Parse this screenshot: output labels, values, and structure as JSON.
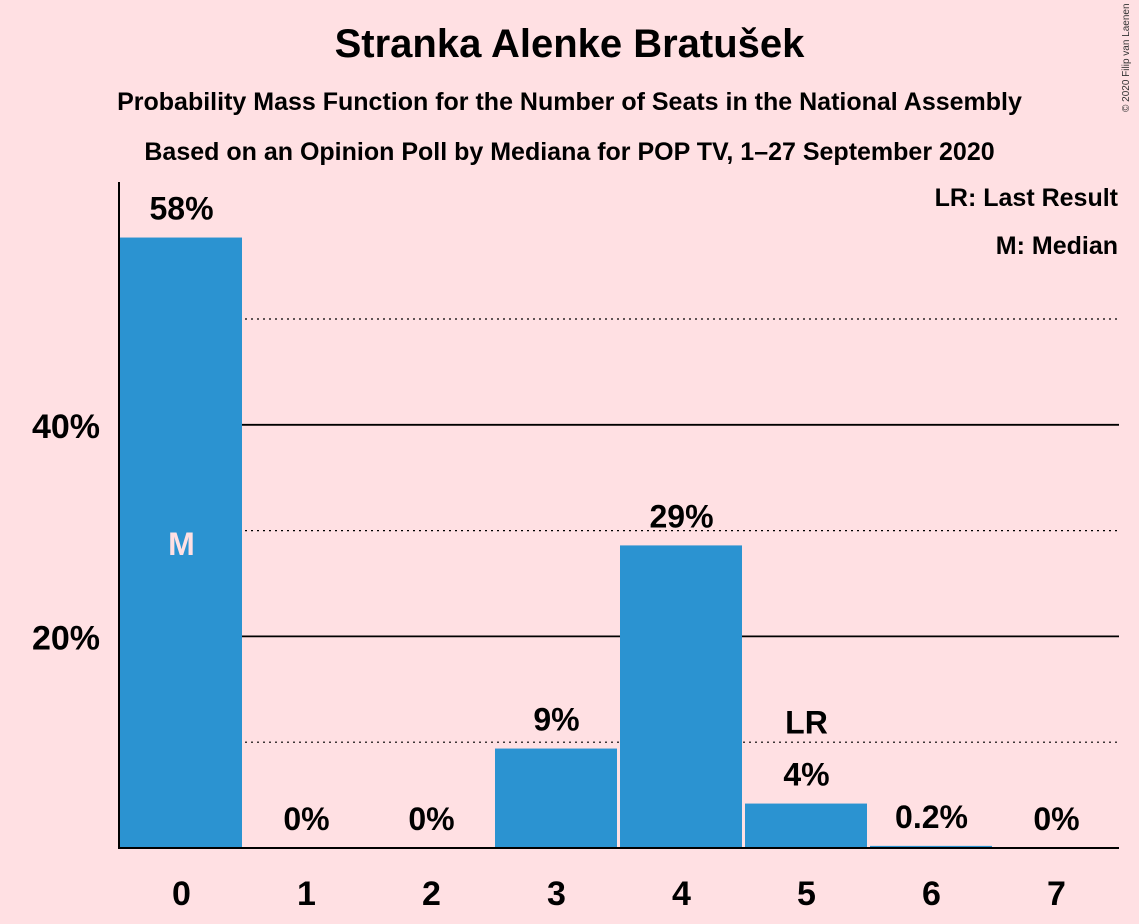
{
  "title": "Stranka Alenke Bratušek",
  "subtitle": "Probability Mass Function for the Number of Seats in the National Assembly",
  "subtitle2": "Based on an Opinion Poll by Mediana for POP TV, 1–27 September 2020",
  "copyright": "© 2020 Filip van Laenen",
  "legend": {
    "last_result": "LR: Last Result",
    "median": "M: Median"
  },
  "colors": {
    "background": "#FFE0E3",
    "bar": "#2B93D1",
    "median_text": "#FFE0E3"
  },
  "chart_data": {
    "type": "bar",
    "title": "Stranka Alenke Bratušek",
    "xlabel": "",
    "ylabel": "",
    "categories": [
      "0",
      "1",
      "2",
      "3",
      "4",
      "5",
      "6",
      "7"
    ],
    "values": [
      57.7,
      0,
      0,
      9.4,
      28.6,
      4.2,
      0.2,
      0
    ],
    "labels": [
      "58%",
      "0%",
      "0%",
      "9%",
      "29%",
      "4%",
      "0.2%",
      "0%"
    ],
    "ylim": [
      0,
      63
    ],
    "yticks": [
      20,
      40
    ],
    "ytick_labels": [
      "20%",
      "40%"
    ],
    "solid_gridlines": [
      20,
      40
    ],
    "dotted_gridlines": [
      10,
      30,
      50
    ],
    "median_index": 0,
    "median_label": "M",
    "last_result_index": 5,
    "last_result_label": "LR"
  }
}
